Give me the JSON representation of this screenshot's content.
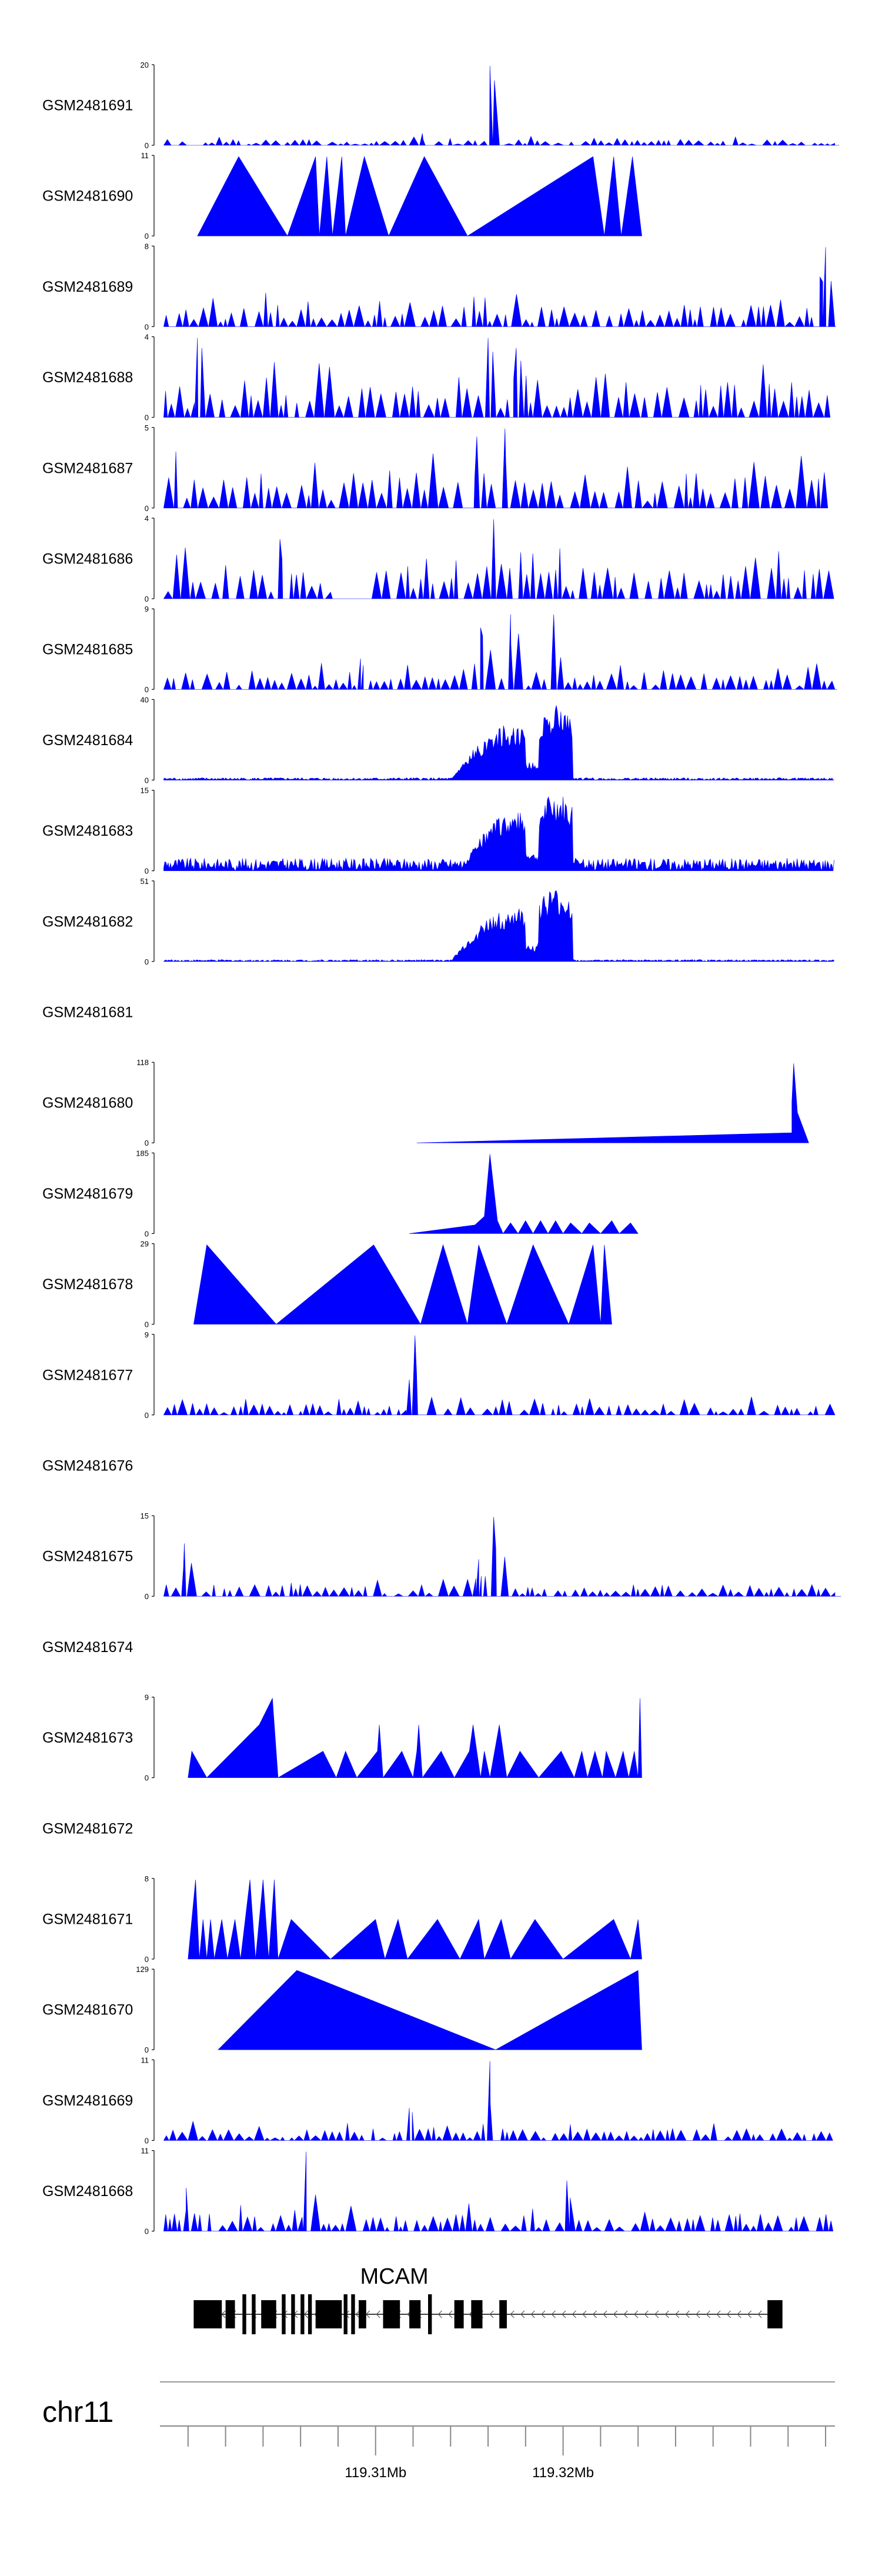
{
  "chart_data": {
    "type": "area",
    "title": "",
    "color": "#0000ff",
    "chromosome": "chr11",
    "region_mb": [
      119.2985,
      119.3345
    ],
    "axis_ticks_mb": [
      119.31,
      119.32
    ],
    "axis_tick_labels": [
      "119.31Mb",
      "119.32Mb"
    ],
    "gene": {
      "name": "MCAM",
      "strand": "-",
      "start_mb": 119.3003,
      "end_mb": 119.3317,
      "exons_mb": [
        [
          119.3003,
          119.3018
        ],
        [
          119.302,
          119.3025
        ],
        [
          119.3029,
          119.3031
        ],
        [
          119.3034,
          119.3036
        ],
        [
          119.3039,
          119.3047
        ],
        [
          119.305,
          119.3052
        ],
        [
          119.3055,
          119.3057
        ],
        [
          119.306,
          119.3062
        ],
        [
          119.3064,
          119.3066
        ],
        [
          119.3068,
          119.3082
        ],
        [
          119.3083,
          119.3085
        ],
        [
          119.3087,
          119.3089
        ],
        [
          119.3091,
          119.3095
        ],
        [
          119.3104,
          119.3113
        ],
        [
          119.3118,
          119.3124
        ],
        [
          119.3128,
          119.313
        ],
        [
          119.3142,
          119.3147
        ],
        [
          119.3151,
          119.3157
        ],
        [
          119.3166,
          119.317
        ],
        [
          119.3309,
          119.3317
        ]
      ]
    },
    "tracks": [
      {
        "name": "GSM2481691",
        "ymax": 20,
        "peaks": [
          [
            119.3161,
            20,
            0.5
          ],
          [
            119.3125,
            3,
            0.6
          ]
        ],
        "base": 2,
        "gaps": [
          [
            119.2995,
            119.3007
          ]
        ],
        "seed": 1
      },
      {
        "name": "GSM2481690",
        "ymax": 11,
        "profile": [
          [
            119.3005,
            0
          ],
          [
            119.3027,
            11
          ],
          [
            119.3053,
            0
          ],
          [
            119.3068,
            11
          ],
          [
            119.307,
            0
          ],
          [
            119.3074,
            11
          ],
          [
            119.3077,
            0
          ],
          [
            119.3082,
            11
          ],
          [
            119.3084,
            0
          ],
          [
            119.3094,
            11
          ],
          [
            119.3107,
            0
          ],
          [
            119.3126,
            11
          ],
          [
            119.3149,
            0
          ],
          [
            119.3216,
            11
          ],
          [
            119.3222,
            0
          ],
          [
            119.3227,
            11
          ],
          [
            119.3231,
            0
          ],
          [
            119.3237,
            11
          ],
          [
            119.3242,
            0
          ]
        ]
      },
      {
        "name": "GSM2481689",
        "ymax": 8,
        "peaks": [
          [
            119.334,
            8,
            0.3
          ],
          [
            119.3337,
            5,
            0.4
          ]
        ],
        "base": 3,
        "gaps": [],
        "seed": 3
      },
      {
        "name": "GSM2481688",
        "ymax": 4,
        "peaks": [
          [
            119.316,
            4,
            0.3
          ],
          [
            119.3175,
            3.5,
            0.5
          ],
          [
            119.3005,
            4,
            0.3
          ]
        ],
        "base": 2.6,
        "gaps": [],
        "seed": 4
      },
      {
        "name": "GSM2481687",
        "ymax": 5,
        "peaks": [
          [
            119.3169,
            5,
            0.3
          ],
          [
            119.3154,
            4.5,
            0.4
          ]
        ],
        "base": 3,
        "gaps": [],
        "seed": 5
      },
      {
        "name": "GSM2481686",
        "ymax": 4,
        "peaks": [
          [
            119.3163,
            4,
            0.3
          ],
          [
            119.3049,
            3,
            0.5
          ]
        ],
        "base": 2.2,
        "gaps": [
          [
            119.3077,
            119.3097
          ]
        ],
        "seed": 6
      },
      {
        "name": "GSM2481685",
        "ymax": 9,
        "peaks": [
          [
            119.3172,
            8.5,
            0.5
          ],
          [
            119.3195,
            8.5,
            0.4
          ],
          [
            119.3156,
            7,
            0.5
          ],
          [
            119.3092,
            3.5,
            0.3
          ]
        ],
        "base": 2.5,
        "gaps": [],
        "seed": 7
      },
      {
        "name": "GSM2481684",
        "ymax": 40,
        "envelope": [
          [
            119.314,
            119.322,
            38
          ],
          [
            119.3188,
            119.3205,
            40
          ]
        ],
        "base": 1,
        "seed": 8
      },
      {
        "name": "GSM2481683",
        "ymax": 15,
        "envelope": [
          [
            119.3145,
            119.3215,
            15
          ],
          [
            119.3188,
            119.3205,
            15
          ]
        ],
        "base": 2,
        "seed": 9
      },
      {
        "name": "GSM2481682",
        "ymax": 51,
        "envelope": [
          [
            119.314,
            119.322,
            46
          ],
          [
            119.3186,
            119.3205,
            51
          ]
        ],
        "base": 1,
        "seed": 10
      },
      {
        "name": "GSM2481681",
        "ymax": null
      },
      {
        "name": "GSM2481680",
        "ymax": 118,
        "profile": [
          [
            119.3122,
            0
          ],
          [
            119.3322,
            15
          ],
          [
            119.3322,
            60
          ],
          [
            119.3323,
            118
          ],
          [
            119.3325,
            45
          ],
          [
            119.3331,
            0
          ]
        ]
      },
      {
        "name": "GSM2481679",
        "ymax": 185,
        "profile": [
          [
            119.3118,
            0
          ],
          [
            119.3153,
            20
          ],
          [
            119.3158,
            40
          ],
          [
            119.3161,
            185
          ],
          [
            119.3165,
            30
          ],
          [
            119.3168,
            0
          ],
          [
            119.3172,
            25
          ],
          [
            119.3176,
            0
          ],
          [
            119.318,
            30
          ],
          [
            119.3184,
            0
          ],
          [
            119.3188,
            30
          ],
          [
            119.3192,
            0
          ],
          [
            119.3196,
            30
          ],
          [
            119.32,
            0
          ],
          [
            119.3204,
            25
          ],
          [
            119.321,
            0
          ],
          [
            119.3214,
            25
          ],
          [
            119.322,
            0
          ],
          [
            119.3226,
            30
          ],
          [
            119.323,
            0
          ],
          [
            119.3236,
            25
          ],
          [
            119.324,
            0
          ]
        ]
      },
      {
        "name": "GSM2481678",
        "ymax": 29,
        "profile": [
          [
            119.3003,
            0
          ],
          [
            119.301,
            29
          ],
          [
            119.3047,
            0
          ],
          [
            119.3099,
            29
          ],
          [
            119.3124,
            0
          ],
          [
            119.3136,
            29
          ],
          [
            119.3149,
            0
          ],
          [
            119.3155,
            29
          ],
          [
            119.317,
            0
          ],
          [
            119.3184,
            29
          ],
          [
            119.3203,
            0
          ],
          [
            119.3216,
            29
          ],
          [
            119.322,
            0
          ],
          [
            119.3222,
            29
          ],
          [
            119.3226,
            0
          ]
        ]
      },
      {
        "name": "GSM2481677",
        "ymax": 9,
        "peaks": [
          [
            119.3121,
            9,
            0.3
          ],
          [
            119.3118,
            4,
            0.4
          ]
        ],
        "base": 1.8,
        "gaps": [],
        "seed": 13
      },
      {
        "name": "GSM2481676",
        "ymax": null
      },
      {
        "name": "GSM2481675",
        "ymax": 15,
        "peaks": [
          [
            119.3163,
            15,
            0.5
          ],
          [
            119.3155,
            7,
            0.5
          ],
          [
            119.2998,
            10,
            0.3
          ]
        ],
        "base": 3,
        "gaps": [],
        "seed": 15
      },
      {
        "name": "GSM2481674",
        "ymax": null
      },
      {
        "name": "GSM2481673",
        "ymax": 9,
        "profile": [
          [
            119.3,
            0
          ],
          [
            119.3002,
            3
          ],
          [
            119.301,
            0
          ],
          [
            119.3024,
            3
          ],
          [
            119.3038,
            6
          ],
          [
            119.3045,
            9
          ],
          [
            119.3048,
            0
          ],
          [
            119.3072,
            3
          ],
          [
            119.3079,
            0
          ],
          [
            119.3084,
            3
          ],
          [
            119.309,
            0
          ],
          [
            119.3101,
            3
          ],
          [
            119.3102,
            6
          ],
          [
            119.3104,
            0
          ],
          [
            119.3114,
            3
          ],
          [
            119.312,
            0
          ],
          [
            119.3122,
            3
          ],
          [
            119.3123,
            6
          ],
          [
            119.3125,
            0
          ],
          [
            119.3135,
            3
          ],
          [
            119.3142,
            0
          ],
          [
            119.315,
            3
          ],
          [
            119.3152,
            6
          ],
          [
            119.3156,
            0
          ],
          [
            119.3158,
            3
          ],
          [
            119.3161,
            0
          ],
          [
            119.3166,
            6
          ],
          [
            119.317,
            0
          ],
          [
            119.3177,
            3
          ],
          [
            119.3187,
            0
          ],
          [
            119.3199,
            3
          ],
          [
            119.3206,
            0
          ],
          [
            119.321,
            3
          ],
          [
            119.3213,
            0
          ],
          [
            119.3217,
            3
          ],
          [
            119.3221,
            0
          ],
          [
            119.3223,
            3
          ],
          [
            119.3228,
            0
          ],
          [
            119.3232,
            3
          ],
          [
            119.3235,
            0
          ],
          [
            119.3238,
            3
          ],
          [
            119.324,
            0
          ],
          [
            119.3241,
            9
          ],
          [
            119.3242,
            0
          ]
        ]
      },
      {
        "name": "GSM2481672",
        "ymax": null
      },
      {
        "name": "GSM2481671",
        "ymax": 8,
        "profile": [
          [
            119.3,
            0
          ],
          [
            119.3002,
            4
          ],
          [
            119.3004,
            8
          ],
          [
            119.3006,
            0
          ],
          [
            119.3008,
            4
          ],
          [
            119.301,
            0
          ],
          [
            119.3012,
            4
          ],
          [
            119.3014,
            0
          ],
          [
            119.3018,
            4
          ],
          [
            119.3021,
            0
          ],
          [
            119.3025,
            4
          ],
          [
            119.3028,
            0
          ],
          [
            119.3033,
            8
          ],
          [
            119.3036,
            0
          ],
          [
            119.304,
            8
          ],
          [
            119.3043,
            0
          ],
          [
            119.3046,
            8
          ],
          [
            119.3048,
            0
          ],
          [
            119.3055,
            4
          ],
          [
            119.3076,
            0
          ],
          [
            119.31,
            4
          ],
          [
            119.3105,
            0
          ],
          [
            119.3112,
            4
          ],
          [
            119.3117,
            0
          ],
          [
            119.3133,
            4
          ],
          [
            119.3145,
            0
          ],
          [
            119.3155,
            4
          ],
          [
            119.3158,
            0
          ],
          [
            119.3167,
            4
          ],
          [
            119.3172,
            0
          ],
          [
            119.3185,
            4
          ],
          [
            119.32,
            0
          ],
          [
            119.3227,
            4
          ],
          [
            119.3236,
            0
          ],
          [
            119.324,
            4
          ],
          [
            119.3242,
            0
          ]
        ]
      },
      {
        "name": "GSM2481670",
        "ymax": 129,
        "profile": [
          [
            119.3016,
            0
          ],
          [
            119.3058,
            129
          ],
          [
            119.3164,
            0
          ],
          [
            119.324,
            129
          ],
          [
            119.3242,
            0
          ]
        ]
      },
      {
        "name": "GSM2481669",
        "ymax": 11,
        "peaks": [
          [
            119.3161,
            11,
            0.3
          ],
          [
            119.3118,
            4.5,
            0.3
          ]
        ],
        "base": 2.2,
        "gaps": [],
        "seed": 21
      },
      {
        "name": "GSM2481668",
        "ymax": 11,
        "peaks": [
          [
            119.3063,
            11,
            0.3
          ],
          [
            119.3202,
            7,
            0.3
          ],
          [
            119.2999,
            6,
            0.4
          ]
        ],
        "base": 3.2,
        "gaps": [],
        "seed": 22
      }
    ]
  }
}
